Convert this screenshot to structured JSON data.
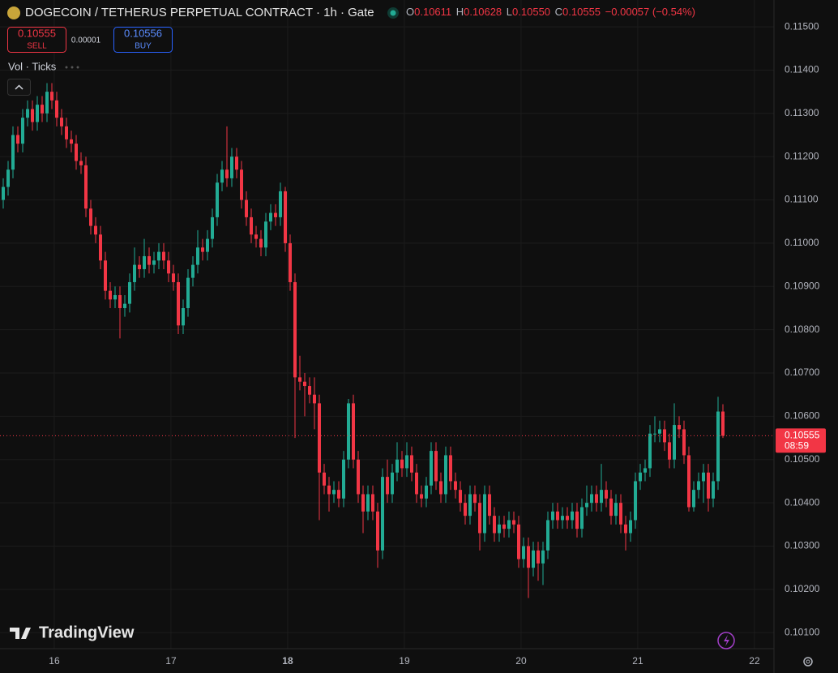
{
  "header": {
    "symbol": "DOGECOIN / TETHERUS PERPETUAL CONTRACT · 1h · Gate",
    "o_label": "O",
    "o": "0.10611",
    "h_label": "H",
    "h": "0.10628",
    "l_label": "L",
    "l": "0.10550",
    "c_label": "C",
    "c": "0.10555",
    "change": "−0.00057 (−0.54%)",
    "sell_price": "0.10555",
    "sell": "SELL",
    "spread": "0.00001",
    "buy_price": "0.10556",
    "buy": "BUY",
    "indicator": "Vol · Ticks"
  },
  "watermark": "TradingView",
  "chart_data": {
    "type": "candlestick",
    "up_color": "#22ab94",
    "down_color": "#f23645",
    "xlim": [
      15.535,
      22.167
    ],
    "xticks": [
      16,
      17,
      18,
      19,
      20,
      21,
      22
    ],
    "ylim": [
      0.10063,
      0.11562
    ],
    "yticks": [
      {
        "value": 0.115,
        "label": "0.11500"
      },
      {
        "value": 0.114,
        "label": "0.11400"
      },
      {
        "value": 0.113,
        "label": "0.11300"
      },
      {
        "value": 0.112,
        "label": "0.11200"
      },
      {
        "value": 0.111,
        "label": "0.11100"
      },
      {
        "value": 0.11,
        "label": "0.11000"
      },
      {
        "value": 0.109,
        "label": "0.10900"
      },
      {
        "value": 0.108,
        "label": "0.10800"
      },
      {
        "value": 0.107,
        "label": "0.10700"
      },
      {
        "value": 0.106,
        "label": "0.10600"
      },
      {
        "value": 0.105,
        "label": "0.10500"
      },
      {
        "value": 0.104,
        "label": "0.10400"
      },
      {
        "value": 0.103,
        "label": "0.10300"
      },
      {
        "value": 0.102,
        "label": "0.10200"
      },
      {
        "value": 0.101,
        "label": "0.10100"
      }
    ],
    "grid": true,
    "last_price": {
      "value": 0.10555,
      "label": "0.10555",
      "countdown": "08:59"
    },
    "open": [
      0.111,
      0.1113,
      0.1117,
      0.1125,
      0.1123,
      0.1129,
      0.1131,
      0.1128,
      0.1132,
      0.113,
      0.1135,
      0.1133,
      0.1129,
      0.1127,
      0.1124,
      0.1123,
      0.1119,
      0.1118,
      0.1108,
      0.1104,
      0.1102,
      0.1096,
      0.1089,
      0.1087,
      0.1088,
      0.1085,
      0.1086,
      0.1091,
      0.1095,
      0.1094,
      0.1097,
      0.1095,
      0.1096,
      0.1098,
      0.1096,
      0.1093,
      0.1091,
      0.1081,
      0.1085,
      0.1092,
      0.1095,
      0.1099,
      0.1098,
      0.1101,
      0.1106,
      0.1114,
      0.1117,
      0.1115,
      0.112,
      0.1117,
      0.111,
      0.1106,
      0.1102,
      0.1101,
      0.1099,
      0.1105,
      0.1107,
      0.1106,
      0.1112,
      0.11,
      0.1091,
      0.1069,
      0.1068,
      0.1067,
      0.1065,
      0.1063,
      0.1047,
      0.1044,
      0.1042,
      0.1043,
      0.1041,
      0.105,
      0.1063,
      0.105,
      0.1042,
      0.1038,
      0.1042,
      0.1038,
      0.1029,
      0.1046,
      0.1042,
      0.1047,
      0.105,
      0.1048,
      0.1051,
      0.1047,
      0.1042,
      0.1041,
      0.1044,
      0.1052,
      0.1045,
      0.1042,
      0.1051,
      0.1045,
      0.1043,
      0.104,
      0.1037,
      0.1042,
      0.104,
      0.1033,
      0.1042,
      0.1037,
      0.1033,
      0.1035,
      0.1034,
      0.1036,
      0.1035,
      0.1027,
      0.103,
      0.1025,
      0.1029,
      0.1026,
      0.1029,
      0.1036,
      0.1038,
      0.1036,
      0.1037,
      0.1036,
      0.1038,
      0.1034,
      0.1039,
      0.104,
      0.1042,
      0.104,
      0.1043,
      0.1041,
      0.1037,
      0.104,
      0.1035,
      0.1033,
      0.1036,
      0.1045,
      0.1047,
      0.1048,
      0.1056,
      0.1056,
      0.1057,
      0.1054,
      0.105,
      0.1058,
      0.1057,
      0.1051,
      0.1039,
      0.1043,
      0.1045,
      0.1047,
      0.1041,
      0.1045,
      0.10611
    ],
    "high": [
      0.1115,
      0.1119,
      0.1127,
      0.1127,
      0.1131,
      0.1133,
      0.1133,
      0.1134,
      0.1134,
      0.1137,
      0.1137,
      0.1135,
      0.1131,
      0.1129,
      0.1126,
      0.1125,
      0.1121,
      0.112,
      0.111,
      0.1106,
      0.1104,
      0.1098,
      0.1091,
      0.109,
      0.109,
      0.1088,
      0.1093,
      0.1099,
      0.1097,
      0.1101,
      0.1099,
      0.1098,
      0.11,
      0.11,
      0.1098,
      0.1095,
      0.1093,
      0.1087,
      0.1094,
      0.1097,
      0.1103,
      0.1101,
      0.1103,
      0.1108,
      0.1116,
      0.1119,
      0.1127,
      0.1122,
      0.1122,
      0.1119,
      0.1112,
      0.1108,
      0.1104,
      0.1103,
      0.1107,
      0.1109,
      0.1109,
      0.1114,
      0.1113,
      0.1102,
      0.1093,
      0.1074,
      0.107,
      0.1069,
      0.1069,
      0.1065,
      0.1049,
      0.1046,
      0.1045,
      0.1045,
      0.1052,
      0.1064,
      0.1065,
      0.1052,
      0.1044,
      0.1044,
      0.1044,
      0.104,
      0.1048,
      0.105,
      0.1049,
      0.1054,
      0.1052,
      0.1054,
      0.1053,
      0.1049,
      0.1044,
      0.1046,
      0.1054,
      0.1054,
      0.1047,
      0.1053,
      0.1053,
      0.1047,
      0.1045,
      0.1042,
      0.1044,
      0.1044,
      0.1042,
      0.1044,
      0.1044,
      0.1039,
      0.1037,
      0.1037,
      0.1038,
      0.1038,
      0.1037,
      0.1032,
      0.1032,
      0.1031,
      0.1031,
      0.1031,
      0.1038,
      0.104,
      0.104,
      0.1039,
      0.1039,
      0.104,
      0.104,
      0.1041,
      0.1044,
      0.1044,
      0.1044,
      0.1049,
      0.1045,
      0.1043,
      0.1042,
      0.1042,
      0.1037,
      0.1038,
      0.1047,
      0.1049,
      0.105,
      0.1058,
      0.106,
      0.1059,
      0.1059,
      0.1056,
      0.1063,
      0.106,
      0.1059,
      0.1053,
      0.1045,
      0.1047,
      0.1049,
      0.1049,
      0.1047,
      0.10645,
      0.10628
    ],
    "low": [
      0.1108,
      0.1111,
      0.1115,
      0.1121,
      0.1121,
      0.1127,
      0.1126,
      0.1126,
      0.1128,
      0.1128,
      0.1131,
      0.1127,
      0.1125,
      0.1122,
      0.1121,
      0.1117,
      0.1116,
      0.1106,
      0.1102,
      0.11,
      0.1094,
      0.1087,
      0.1085,
      0.1085,
      0.1078,
      0.1083,
      0.1084,
      0.1089,
      0.1092,
      0.1092,
      0.1093,
      0.1093,
      0.1094,
      0.1094,
      0.1091,
      0.1089,
      0.1079,
      0.1079,
      0.1083,
      0.109,
      0.1093,
      0.1096,
      0.1096,
      0.1099,
      0.1104,
      0.1112,
      0.1113,
      0.1113,
      0.1115,
      0.1108,
      0.1104,
      0.11,
      0.1099,
      0.1097,
      0.1097,
      0.1103,
      0.1104,
      0.1104,
      0.1098,
      0.1089,
      0.1055,
      0.1066,
      0.106,
      0.1063,
      0.1057,
      0.1036,
      0.1042,
      0.1038,
      0.104,
      0.1039,
      0.1039,
      0.1048,
      0.1048,
      0.104,
      0.1033,
      0.1036,
      0.1036,
      0.1025,
      0.1027,
      0.104,
      0.104,
      0.1045,
      0.1046,
      0.1046,
      0.1045,
      0.104,
      0.1039,
      0.1039,
      0.1042,
      0.1043,
      0.104,
      0.104,
      0.1043,
      0.1041,
      0.1038,
      0.1035,
      0.1035,
      0.1038,
      0.1029,
      0.1031,
      0.1035,
      0.1031,
      0.1031,
      0.1032,
      0.1032,
      0.1033,
      0.1025,
      0.1025,
      0.1018,
      0.1023,
      0.1022,
      0.1021,
      0.1027,
      0.1034,
      0.1034,
      0.1034,
      0.1034,
      0.1034,
      0.1032,
      0.1032,
      0.1037,
      0.1038,
      0.1038,
      0.1038,
      0.1039,
      0.1035,
      0.1035,
      0.1033,
      0.1029,
      0.1031,
      0.1034,
      0.1043,
      0.1045,
      0.1046,
      0.1054,
      0.1054,
      0.1052,
      0.1048,
      0.1048,
      0.1055,
      0.1049,
      0.1038,
      0.1038,
      0.1041,
      0.104,
      0.1038,
      0.1039,
      0.1043,
      0.1055
    ],
    "close": [
      0.1113,
      0.1117,
      0.1125,
      0.1123,
      0.1129,
      0.1131,
      0.1128,
      0.1132,
      0.113,
      0.1135,
      0.1133,
      0.1129,
      0.1127,
      0.1124,
      0.1123,
      0.1119,
      0.1118,
      0.1108,
      0.1104,
      0.1102,
      0.1096,
      0.1089,
      0.1087,
      0.1088,
      0.1085,
      0.1086,
      0.1091,
      0.1095,
      0.1094,
      0.1097,
      0.1095,
      0.1096,
      0.1098,
      0.1096,
      0.1093,
      0.1091,
      0.1081,
      0.1085,
      0.1092,
      0.1095,
      0.1099,
      0.1098,
      0.1101,
      0.1106,
      0.1114,
      0.1117,
      0.1115,
      0.112,
      0.1117,
      0.111,
      0.1106,
      0.1102,
      0.1101,
      0.1099,
      0.1105,
      0.1107,
      0.1106,
      0.1112,
      0.11,
      0.1091,
      0.1069,
      0.1068,
      0.1067,
      0.1065,
      0.1063,
      0.1047,
      0.1044,
      0.1042,
      0.1043,
      0.1041,
      0.105,
      0.1063,
      0.105,
      0.1042,
      0.1038,
      0.1042,
      0.1038,
      0.1029,
      0.1046,
      0.1042,
      0.1047,
      0.105,
      0.1048,
      0.1051,
      0.1047,
      0.1042,
      0.1041,
      0.1044,
      0.1052,
      0.1045,
      0.1042,
      0.1051,
      0.1045,
      0.1043,
      0.104,
      0.1037,
      0.1042,
      0.104,
      0.1033,
      0.1042,
      0.1037,
      0.1033,
      0.1035,
      0.1034,
      0.1036,
      0.1035,
      0.1027,
      0.103,
      0.1025,
      0.1029,
      0.1026,
      0.1029,
      0.1036,
      0.1038,
      0.1036,
      0.1037,
      0.1036,
      0.1038,
      0.1034,
      0.1039,
      0.104,
      0.1042,
      0.104,
      0.1043,
      0.1041,
      0.1037,
      0.104,
      0.1035,
      0.1033,
      0.1036,
      0.1045,
      0.1047,
      0.1048,
      0.1056,
      0.1056,
      0.1057,
      0.1054,
      0.105,
      0.1058,
      0.1057,
      0.1051,
      0.1039,
      0.1043,
      0.1045,
      0.1047,
      0.1041,
      0.1045,
      0.10611,
      0.10555
    ]
  }
}
